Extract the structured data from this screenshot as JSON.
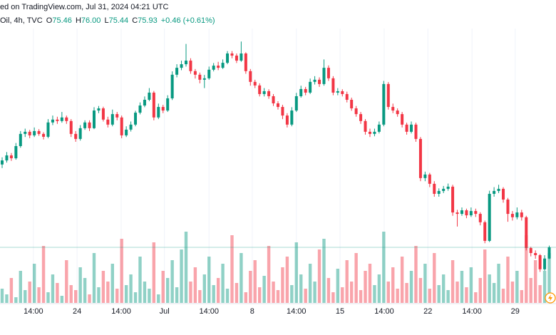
{
  "header": {
    "published": "ed on TradingView.com, Jul 31, 2024 04:21 UTC",
    "symbol": "Oil, 4h, TVC",
    "ohlc": [
      {
        "key": "O",
        "value": "75.46"
      },
      {
        "key": "H",
        "value": "76.00"
      },
      {
        "key": "L",
        "value": "75.44"
      },
      {
        "key": "C",
        "value": "75.93"
      }
    ],
    "change": "+0.46 (+0.61%)"
  },
  "chart_data": {
    "type": "candlestick",
    "up_color": "#089981",
    "down_color": "#f23645",
    "grid": true,
    "xlim": [
      -0.465,
      120.47
    ],
    "ylim": [
      73.6,
      86.29
    ],
    "y2lim": [
      0,
      100
    ],
    "xticks": [
      {
        "value": 6.8,
        "label": "14:00"
      },
      {
        "value": 16.3,
        "label": "24"
      },
      {
        "value": 25.9,
        "label": "14:00"
      },
      {
        "value": 35.3,
        "label": "Jul"
      },
      {
        "value": 45,
        "label": "14:00"
      },
      {
        "value": 54.4,
        "label": "8"
      },
      {
        "value": 64,
        "label": "14:00"
      },
      {
        "value": 73.5,
        "label": "15"
      },
      {
        "value": 83.1,
        "label": "14:00"
      },
      {
        "value": 92.6,
        "label": "22"
      },
      {
        "value": 102.2,
        "label": "14:00"
      },
      {
        "value": 111.6,
        "label": "29"
      }
    ],
    "open": [
      79.4,
      79.57,
      79.78,
      79.66,
      80.17,
      80.68,
      80.77,
      80.62,
      80.8,
      80.68,
      80.56,
      81.16,
      81.28,
      81.22,
      81.37,
      81.22,
      80.68,
      80.47,
      80.92,
      81.16,
      80.92,
      81.66,
      81.75,
      81.28,
      81.07,
      81.51,
      81.37,
      80.62,
      80.86,
      81.07,
      81.57,
      81.87,
      82.11,
      82.41,
      81.37,
      81.81,
      81.66,
      82.17,
      83.16,
      83.45,
      83.6,
      83.75,
      83.31,
      83.16,
      82.95,
      83.01,
      83.37,
      83.54,
      83.45,
      83.66,
      84.05,
      83.96,
      83.75,
      84.05,
      83.31,
      82.86,
      82.71,
      82.35,
      82.47,
      82.26,
      81.96,
      81.81,
      81.45,
      81.07,
      81.66,
      82.26,
      82.56,
      82.41,
      82.86,
      82.95,
      82.77,
      83.45,
      83.01,
      82.41,
      82.47,
      82.35,
      82.11,
      81.75,
      81.51,
      81.22,
      80.77,
      80.68,
      80.77,
      81.07,
      82.77,
      81.81,
      81.66,
      81.51,
      81.07,
      80.77,
      81.07,
      80.47,
      78.83,
      78.98,
      78.59,
      78.17,
      78.29,
      78.38,
      78.47,
      77.39,
      77.33,
      77.48,
      77.27,
      77.45,
      77.33,
      76.98,
      76.2,
      78.17,
      78.29,
      78.38,
      77.93,
      77.33,
      77.19,
      77.39,
      77.19,
      75.9,
      75.69,
      75.6,
      75.01,
      75.46
    ],
    "high": [
      79.7,
      79.92,
      79.88,
      80.3,
      80.8,
      80.9,
      80.85,
      80.95,
      80.88,
      80.75,
      81.3,
      81.45,
      81.4,
      81.6,
      81.45,
      81.3,
      80.8,
      81.05,
      81.25,
      81.25,
      81.8,
      81.85,
      81.82,
      81.4,
      81.7,
      81.6,
      81.45,
      81.0,
      81.2,
      81.65,
      82.0,
      82.25,
      82.6,
      82.48,
      81.95,
      81.9,
      82.3,
      83.3,
      83.6,
      83.75,
      84.45,
      83.85,
      83.4,
      83.25,
      83.15,
      83.5,
      83.65,
      83.7,
      83.8,
      84.15,
      84.15,
      84.05,
      84.55,
      84.1,
      83.4,
      82.95,
      82.8,
      82.6,
      82.55,
      82.35,
      82.05,
      81.9,
      81.55,
      81.8,
      82.4,
      82.7,
      82.65,
      83.0,
      83.1,
      83.05,
      83.8,
      83.55,
      83.1,
      82.6,
      82.55,
      82.45,
      82.2,
      81.85,
      81.6,
      81.3,
      80.9,
      80.9,
      81.2,
      82.9,
      82.85,
      81.95,
      81.75,
      81.6,
      81.15,
      81.2,
      81.15,
      80.55,
      79.1,
      79.05,
      78.7,
      78.4,
      78.5,
      78.6,
      78.55,
      77.5,
      77.6,
      77.55,
      77.6,
      77.55,
      77.4,
      77.05,
      78.3,
      78.45,
      78.55,
      78.45,
      78.0,
      77.45,
      77.6,
      77.5,
      77.25,
      75.95,
      75.8,
      75.65,
      75.6,
      76.0
    ],
    "low": [
      79.25,
      79.48,
      79.55,
      79.6,
      80.1,
      80.55,
      80.5,
      80.55,
      80.6,
      80.45,
      80.5,
      81.05,
      81.1,
      81.15,
      81.1,
      80.55,
      80.35,
      80.4,
      80.85,
      80.8,
      80.88,
      81.55,
      81.2,
      80.95,
      81.0,
      81.25,
      80.5,
      80.55,
      80.78,
      81.0,
      81.5,
      81.8,
      82.05,
      81.25,
      81.3,
      81.55,
      81.6,
      82.1,
      83.05,
      83.35,
      83.5,
      83.2,
      83.0,
      82.8,
      82.6,
      82.95,
      83.3,
      83.35,
      83.4,
      83.6,
      83.85,
      83.65,
      83.7,
      83.2,
      82.7,
      82.6,
      82.25,
      82.25,
      82.15,
      81.85,
      81.7,
      81.3,
      80.95,
      81.0,
      81.6,
      82.2,
      82.3,
      82.35,
      82.75,
      82.65,
      82.7,
      82.9,
      82.3,
      82.3,
      82.25,
      82.0,
      81.65,
      81.4,
      81.1,
      80.65,
      80.55,
      80.58,
      80.7,
      81.0,
      81.7,
      81.55,
      81.4,
      80.95,
      80.65,
      80.7,
      80.35,
      78.7,
      78.7,
      78.45,
      78.05,
      78.05,
      78.2,
      78.3,
      77.25,
      76.8,
      77.25,
      77.15,
      77.2,
      77.2,
      76.85,
      76.1,
      76.15,
      78.05,
      78.2,
      77.8,
      77.0,
      77.05,
      77.1,
      77.05,
      75.8,
      75.55,
      75.45,
      74.9,
      74.95,
      75.44
    ],
    "close": [
      79.57,
      79.78,
      79.66,
      80.17,
      80.68,
      80.77,
      80.62,
      80.8,
      80.68,
      80.56,
      81.16,
      81.28,
      81.22,
      81.37,
      81.22,
      80.68,
      80.47,
      80.92,
      81.16,
      80.92,
      81.66,
      81.75,
      81.28,
      81.07,
      81.51,
      81.37,
      80.62,
      80.86,
      81.07,
      81.57,
      81.87,
      82.11,
      82.41,
      81.37,
      81.81,
      81.66,
      82.17,
      83.16,
      83.45,
      83.6,
      83.75,
      83.31,
      83.16,
      82.95,
      83.01,
      83.37,
      83.54,
      83.45,
      83.66,
      84.05,
      83.96,
      83.75,
      84.05,
      83.31,
      82.86,
      82.71,
      82.35,
      82.47,
      82.26,
      81.96,
      81.81,
      81.45,
      81.07,
      81.66,
      82.26,
      82.56,
      82.41,
      82.86,
      82.95,
      82.77,
      83.45,
      83.01,
      82.41,
      82.47,
      82.35,
      82.11,
      81.75,
      81.51,
      81.22,
      80.77,
      80.68,
      80.77,
      81.07,
      82.77,
      81.81,
      81.66,
      81.51,
      81.07,
      80.77,
      81.07,
      80.47,
      78.83,
      78.98,
      78.59,
      78.17,
      78.29,
      78.38,
      78.47,
      77.39,
      77.33,
      77.48,
      77.27,
      77.45,
      77.33,
      76.98,
      76.2,
      78.17,
      78.29,
      78.38,
      77.93,
      77.33,
      77.19,
      77.39,
      77.19,
      75.9,
      75.69,
      75.6,
      75.01,
      75.46,
      75.93
    ],
    "volume": [
      20,
      12,
      35,
      8,
      45,
      18,
      30,
      55,
      22,
      80,
      15,
      40,
      28,
      10,
      60,
      25,
      18,
      50,
      35,
      12,
      70,
      22,
      45,
      30,
      55,
      20,
      90,
      25,
      40,
      15,
      65,
      30,
      20,
      85,
      12,
      45,
      35,
      60,
      22,
      75,
      100,
      30,
      50,
      18,
      40,
      65,
      25,
      35,
      55,
      20,
      95,
      28,
      70,
      15,
      45,
      60,
      22,
      38,
      80,
      30,
      18,
      50,
      65,
      25,
      85,
      40,
      20,
      55,
      30,
      75,
      90,
      35,
      15,
      48,
      22,
      60,
      30,
      70,
      18,
      45,
      55,
      25,
      40,
      100,
      30,
      50,
      20,
      65,
      28,
      45,
      80,
      35,
      55,
      20,
      70,
      25,
      40,
      18,
      60,
      30,
      45,
      22,
      50,
      15,
      35,
      75,
      40,
      28,
      55,
      20,
      65,
      30,
      45,
      18,
      95,
      35,
      60,
      25,
      45,
      70
    ]
  }
}
